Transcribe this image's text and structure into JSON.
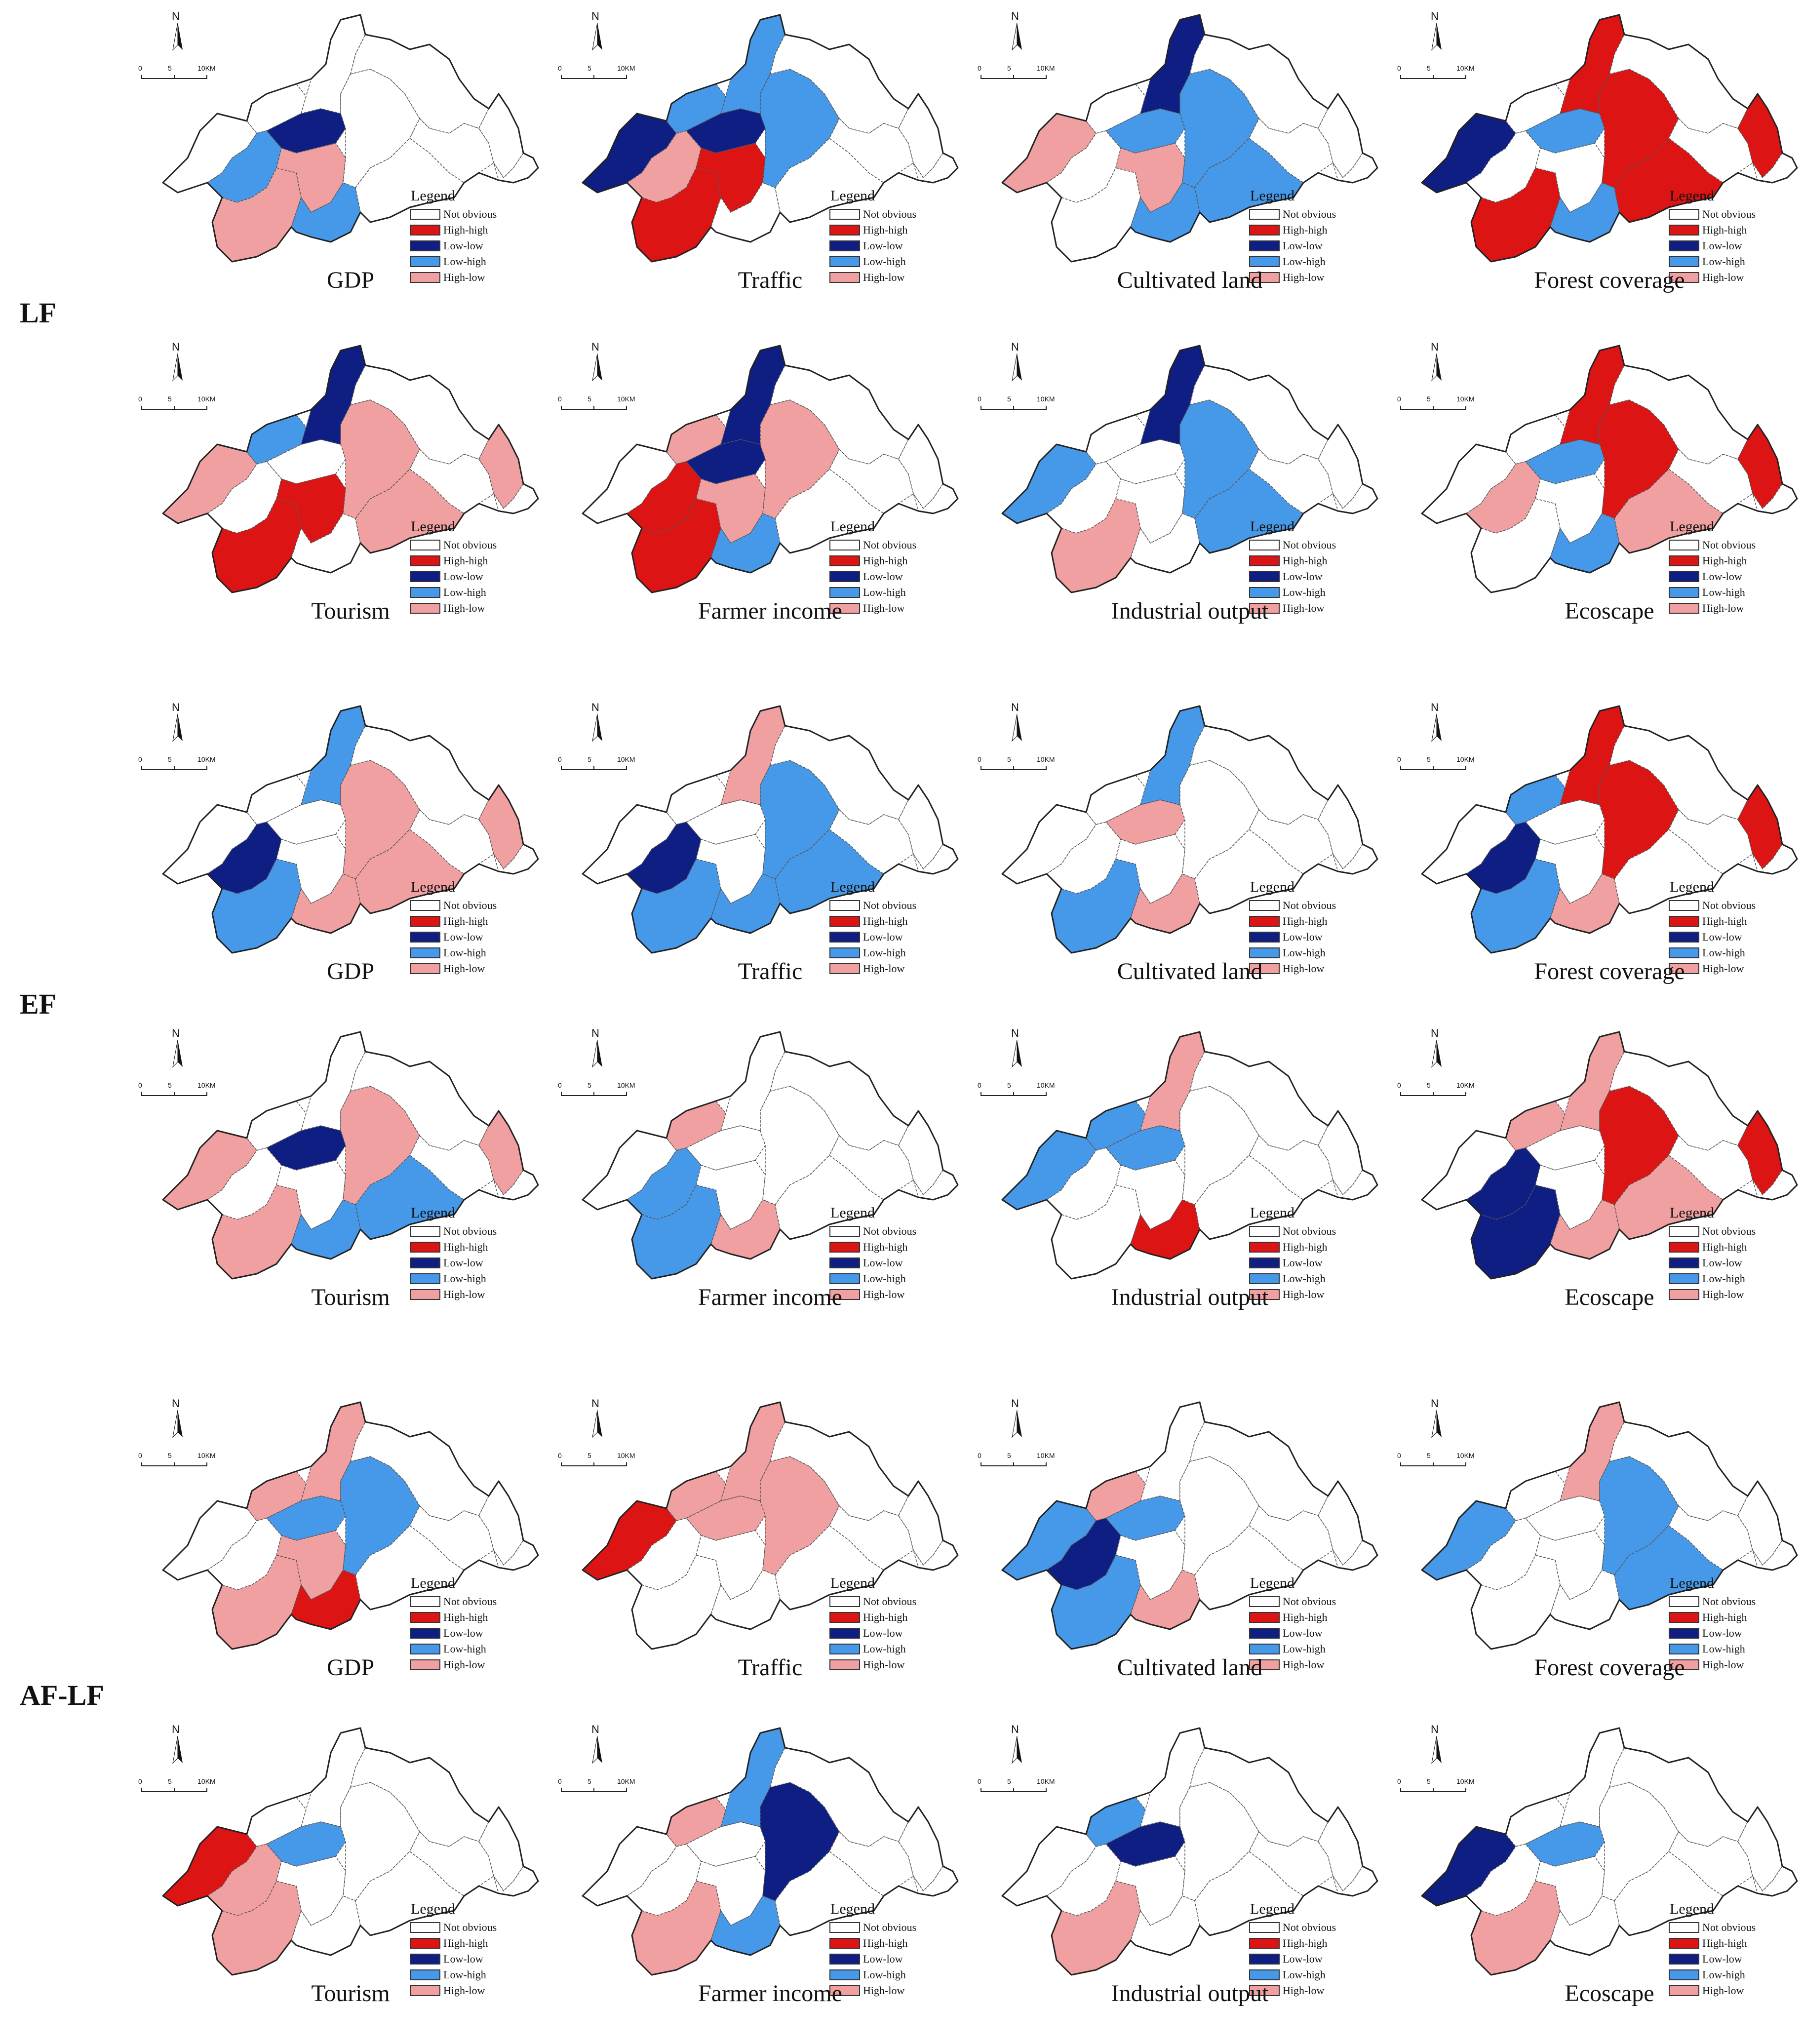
{
  "colors": {
    "not_obvious": "#ffffff",
    "high_high": "#dc1414",
    "low_low": "#0f1e82",
    "low_high": "#4699e8",
    "high_low": "#f0a0a0"
  },
  "rows": [
    {
      "label": "LF"
    },
    {
      "label": "EF"
    },
    {
      "label": "AF-LF"
    }
  ],
  "legend_title": "Legend",
  "legend_items": [
    "Not obvious",
    "High-high",
    "Low-low",
    "Low-high",
    "High-low"
  ],
  "north_label": "N",
  "scale_labels": [
    "0",
    "5",
    "10KM"
  ],
  "panels": [
    {
      "title": "GDP",
      "classes": [
        "n",
        "n",
        "ll",
        "lh",
        "hl",
        "hl",
        "lh",
        "n",
        "n",
        "n",
        "n",
        "n",
        "n",
        "n"
      ]
    },
    {
      "title": "Traffic",
      "classes": [
        "ll",
        "lh",
        "ll",
        "hl",
        "hh",
        "hh",
        "n",
        "lh",
        "lh",
        "n",
        "n",
        "n",
        "n",
        "n"
      ]
    },
    {
      "title": "Cultivated land",
      "classes": [
        "hl",
        "n",
        "lh",
        "n",
        "n",
        "hl",
        "lh",
        "ll",
        "lh",
        "lh",
        "n",
        "n",
        "n",
        "n"
      ]
    },
    {
      "title": "Forest coverage",
      "classes": [
        "ll",
        "n",
        "lh",
        "n",
        "hh",
        "n",
        "lh",
        "hh",
        "hh",
        "hh",
        "n",
        "n",
        "hh",
        "n"
      ]
    },
    {
      "title": "Tourism",
      "classes": [
        "hl",
        "lh",
        "n",
        "n",
        "hh",
        "hh",
        "n",
        "ll",
        "hl",
        "hl",
        "n",
        "n",
        "hl",
        "n"
      ]
    },
    {
      "title": "Farmer income",
      "classes": [
        "n",
        "hl",
        "ll",
        "hh",
        "hh",
        "hl",
        "lh",
        "ll",
        "hl",
        "n",
        "n",
        "n",
        "n",
        "n"
      ]
    },
    {
      "title": "Industrial output",
      "classes": [
        "lh",
        "n",
        "n",
        "n",
        "hl",
        "n",
        "n",
        "ll",
        "lh",
        "lh",
        "n",
        "n",
        "n",
        "n"
      ]
    },
    {
      "title": "Ecoscape",
      "classes": [
        "n",
        "n",
        "lh",
        "hl",
        "n",
        "n",
        "lh",
        "hh",
        "hh",
        "hl",
        "n",
        "n",
        "hh",
        "n"
      ]
    },
    {
      "title": "GDP",
      "classes": [
        "n",
        "n",
        "n",
        "ll",
        "lh",
        "n",
        "hl",
        "lh",
        "hl",
        "hl",
        "n",
        "n",
        "hl",
        "n"
      ]
    },
    {
      "title": "Traffic",
      "classes": [
        "n",
        "n",
        "n",
        "ll",
        "lh",
        "n",
        "lh",
        "hl",
        "lh",
        "lh",
        "n",
        "n",
        "n",
        "n"
      ]
    },
    {
      "title": "Cultivated land",
      "classes": [
        "n",
        "n",
        "hl",
        "n",
        "lh",
        "n",
        "hl",
        "lh",
        "n",
        "n",
        "n",
        "n",
        "n",
        "n"
      ]
    },
    {
      "title": "Forest coverage",
      "classes": [
        "n",
        "lh",
        "n",
        "ll",
        "lh",
        "n",
        "hl",
        "hh",
        "hh",
        "n",
        "n",
        "n",
        "hh",
        "n"
      ]
    },
    {
      "title": "Tourism",
      "classes": [
        "hl",
        "n",
        "ll",
        "n",
        "hl",
        "n",
        "lh",
        "n",
        "hl",
        "lh",
        "n",
        "n",
        "hl",
        "n"
      ]
    },
    {
      "title": "Farmer income",
      "classes": [
        "n",
        "hl",
        "n",
        "lh",
        "lh",
        "n",
        "hl",
        "n",
        "n",
        "n",
        "n",
        "n",
        "n",
        "n"
      ]
    },
    {
      "title": "Industrial output",
      "classes": [
        "lh",
        "lh",
        "lh",
        "n",
        "n",
        "n",
        "hh",
        "hl",
        "n",
        "n",
        "n",
        "n",
        "n",
        "n"
      ]
    },
    {
      "title": "Ecoscape",
      "classes": [
        "n",
        "hl",
        "n",
        "ll",
        "ll",
        "n",
        "hl",
        "hl",
        "hh",
        "hl",
        "n",
        "n",
        "hh",
        "n"
      ]
    },
    {
      "title": "GDP",
      "classes": [
        "n",
        "hl",
        "lh",
        "n",
        "hl",
        "hl",
        "hh",
        "hl",
        "lh",
        "n",
        "n",
        "n",
        "n",
        "n"
      ]
    },
    {
      "title": "Traffic",
      "classes": [
        "hh",
        "hl",
        "hl",
        "n",
        "n",
        "n",
        "n",
        "hl",
        "hl",
        "n",
        "n",
        "n",
        "n",
        "n"
      ]
    },
    {
      "title": "Cultivated land",
      "classes": [
        "lh",
        "hl",
        "lh",
        "ll",
        "lh",
        "n",
        "hl",
        "n",
        "n",
        "n",
        "n",
        "n",
        "n",
        "n"
      ]
    },
    {
      "title": "Forest coverage",
      "classes": [
        "lh",
        "n",
        "n",
        "n",
        "n",
        "n",
        "n",
        "hl",
        "lh",
        "lh",
        "n",
        "n",
        "n",
        "n"
      ]
    },
    {
      "title": "Tourism",
      "classes": [
        "hh",
        "n",
        "lh",
        "hl",
        "hl",
        "n",
        "n",
        "n",
        "n",
        "n",
        "n",
        "n",
        "n",
        "n"
      ]
    },
    {
      "title": "Farmer income",
      "classes": [
        "n",
        "hl",
        "n",
        "n",
        "hl",
        "n",
        "lh",
        "lh",
        "ll",
        "n",
        "n",
        "n",
        "n",
        "n"
      ]
    },
    {
      "title": "Industrial output",
      "classes": [
        "n",
        "lh",
        "ll",
        "n",
        "hl",
        "n",
        "n",
        "n",
        "n",
        "n",
        "n",
        "n",
        "n",
        "n"
      ]
    },
    {
      "title": "Ecoscape",
      "classes": [
        "ll",
        "n",
        "lh",
        "n",
        "hl",
        "n",
        "n",
        "n",
        "n",
        "n",
        "n",
        "n",
        "n",
        "n"
      ]
    }
  ]
}
